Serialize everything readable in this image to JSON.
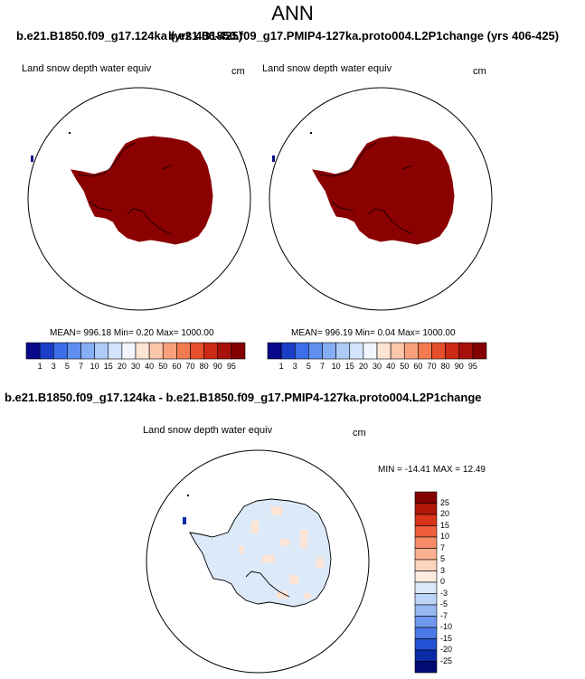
{
  "title": "ANN",
  "top_case_left": "b.e21.B1850.f09_g17.124ka (yrs 406-425)",
  "top_case_right": "b.e21.B1850.f09_g17.PMIP4-127ka.proto004.L2P1change (yrs 406-425)",
  "panels": [
    {
      "variable": "Land snow depth water equiv",
      "units": "cm",
      "stats": "MEAN= 996.18  Min=   0.20  Max= 1000.00"
    },
    {
      "variable": "Land snow depth water equiv",
      "units": "cm",
      "stats": "MEAN= 996.19  Min=   0.04  Max= 1000.00"
    }
  ],
  "abs_colorbar": {
    "ticks": [
      "1",
      "3",
      "5",
      "7",
      "10",
      "15",
      "20",
      "30",
      "40",
      "50",
      "60",
      "70",
      "80",
      "90",
      "95"
    ],
    "colors": [
      "#08088a",
      "#1a3ec8",
      "#3b6ee8",
      "#5f90f0",
      "#86aef5",
      "#aecbf8",
      "#d3e3fb",
      "#f2f5fd",
      "#fde4d4",
      "#fbc6aa",
      "#f7a07c",
      "#f27a4f",
      "#e64f2b",
      "#cc2a16",
      "#a8110b",
      "#830000"
    ]
  },
  "diff_title": "b.e21.B1850.f09_g17.124ka - b.e21.B1850.f09_g17.PMIP4-127ka.proto004.L2P1change",
  "diff_panel": {
    "variable": "Land snow depth water equiv",
    "units": "cm",
    "stats": "MIN = -14.41 MAX =  12.49"
  },
  "diff_colorbar": {
    "ticks": [
      "25",
      "20",
      "15",
      "10",
      "7",
      "5",
      "3",
      "0",
      "-3",
      "-5",
      "-7",
      "-10",
      "-15",
      "-20",
      "-25"
    ],
    "colors": [
      "#830000",
      "#b01808",
      "#d8341a",
      "#ee5e3a",
      "#f78a66",
      "#fbb191",
      "#fdd4bd",
      "#fdece0",
      "#dce9f9",
      "#bcd4f6",
      "#97b9f2",
      "#7099ee",
      "#4a78e6",
      "#2552d4",
      "#0a2aa8",
      "#020a74"
    ]
  },
  "colors": {
    "land_full": "#8b0000",
    "ocean": "#ffffff",
    "diff_land": "#dce9f9",
    "diff_warm": "#fde4d4"
  }
}
